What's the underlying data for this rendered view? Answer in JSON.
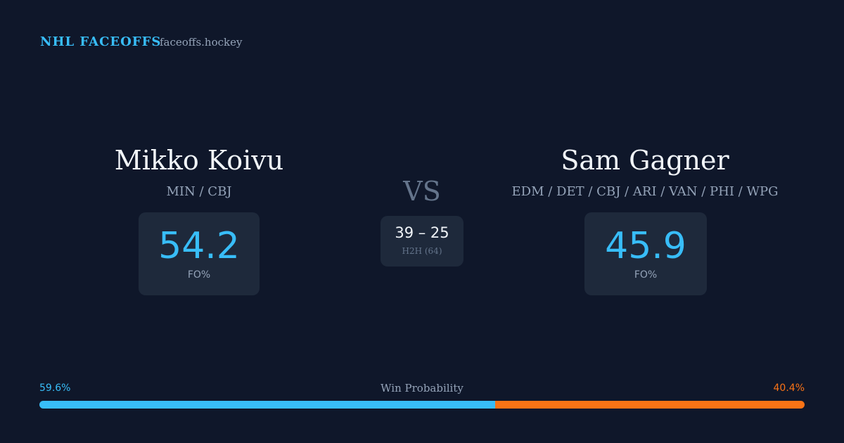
{
  "header": {
    "title": "NHL FACEOFFS",
    "site": "faceoffs.hockey"
  },
  "players": [
    {
      "name": "Mikko Koivu",
      "teams": "MIN / CBJ",
      "fo_pct": "54.2",
      "fo_label": "FO%"
    },
    {
      "name": "Sam Gagner",
      "teams": "EDM / DET / CBJ / ARI / VAN / PHI / WPG",
      "fo_pct": "45.9",
      "fo_label": "FO%"
    }
  ],
  "versus": "VS",
  "head_to_head": {
    "score": "39 – 25",
    "label": "H2H (64)"
  },
  "win_probability": {
    "title": "Win Probability",
    "left": {
      "value": 59.6,
      "label": "59.6%",
      "color": "#38bdf8"
    },
    "right": {
      "value": 40.4,
      "label": "40.4%",
      "color": "#f97316"
    }
  }
}
